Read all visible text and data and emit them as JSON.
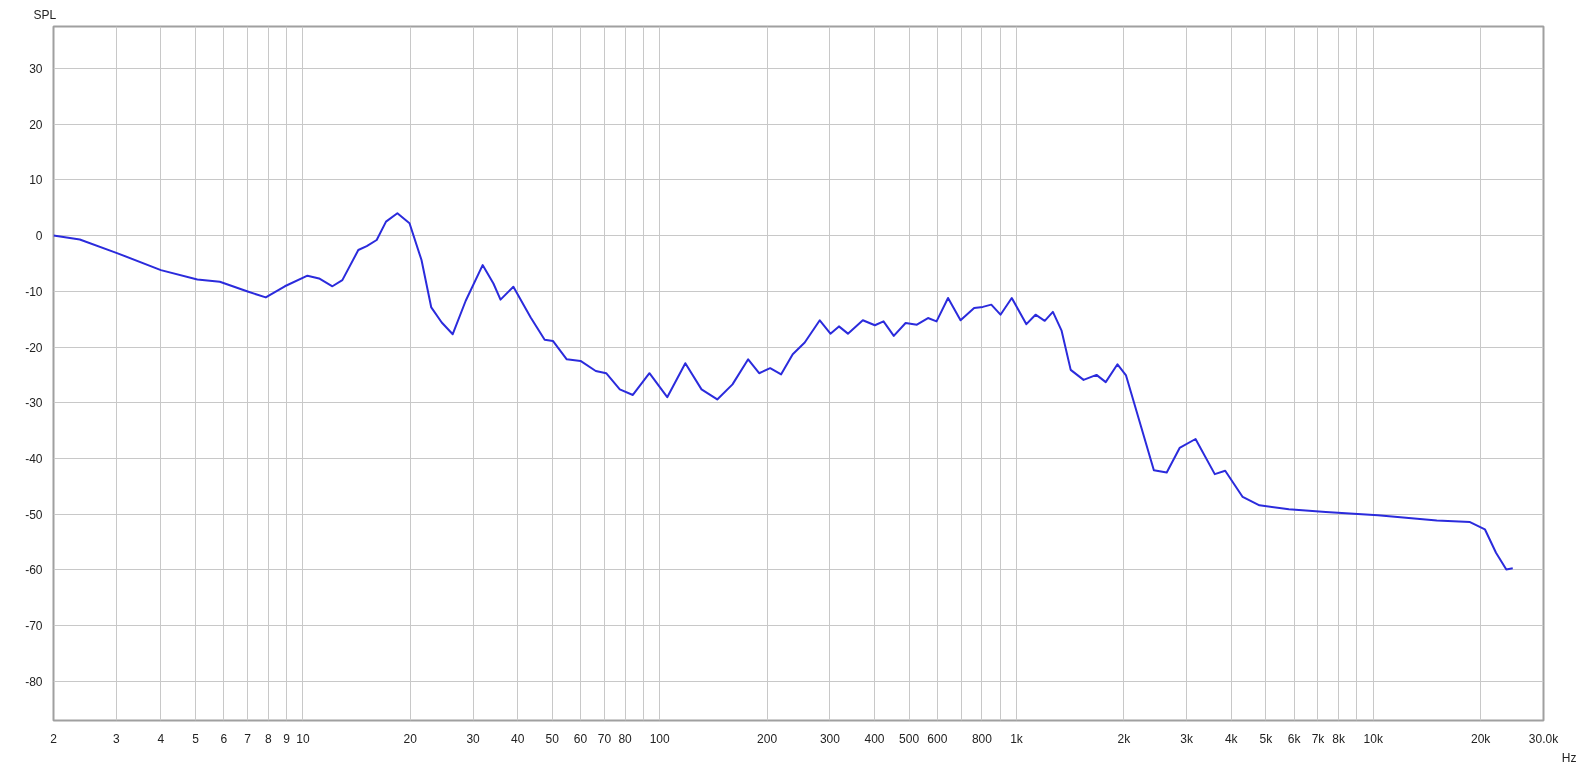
{
  "chart_data": {
    "type": "line",
    "ylabel": "SPL",
    "xlabel": "Hz",
    "log": "x",
    "grid": true,
    "marker": "none",
    "line_style": "solid",
    "xlim": [
      2,
      30000
    ],
    "ylim": [
      -87,
      37.5
    ],
    "xticks": [
      2,
      3,
      4,
      5,
      6,
      7,
      8,
      9,
      10,
      20,
      30,
      40,
      50,
      60,
      70,
      80,
      {
        "value": 90,
        "label": null
      },
      100,
      200,
      300,
      400,
      500,
      600,
      {
        "value": 700,
        "label": null
      },
      800,
      {
        "value": 900,
        "label": null
      },
      {
        "value": 1000,
        "label": "1k"
      },
      {
        "value": 2000,
        "label": "2k"
      },
      {
        "value": 3000,
        "label": "3k"
      },
      {
        "value": 4000,
        "label": "4k"
      },
      {
        "value": 5000,
        "label": "5k"
      },
      {
        "value": 6000,
        "label": "6k"
      },
      {
        "value": 7000,
        "label": "7k"
      },
      {
        "value": 8000,
        "label": "8k"
      },
      {
        "value": 9000,
        "label": null
      },
      {
        "value": 10000,
        "label": "10k"
      },
      {
        "value": 20000,
        "label": "20k"
      },
      {
        "value": 30000,
        "label": "30.0k"
      }
    ],
    "yticks": [
      -80,
      -70,
      -60,
      -50,
      -40,
      -30,
      -20,
      -10,
      0,
      10,
      20,
      30
    ],
    "series": [
      {
        "color": "#2b2bdc",
        "x": [
          2.0,
          2.37,
          3.0,
          4.0,
          5.06,
          5.85,
          6.97,
          7.87,
          8.9,
          10.3,
          11.1,
          12.1,
          12.9,
          14.3,
          15.1,
          16.1,
          17.1,
          18.4,
          19.9,
          21.5,
          22.9,
          24.5,
          26.3,
          28.6,
          31.9,
          34.2,
          35.8,
          38.9,
          43.5,
          47.6,
          50.2,
          54.9,
          60,
          66.2,
          70.8,
          77.3,
          84.1,
          93.6,
          105,
          118,
          131,
          145,
          160,
          177,
          190,
          204,
          219,
          236,
          255,
          281,
          301,
          318,
          337,
          371,
          401,
          424,
          453,
          489,
          526,
          565,
          597,
          643,
          697,
          761,
          805,
          850,
          902,
          970,
          1066,
          1131,
          1200,
          1265,
          1337,
          1419,
          1542,
          1676,
          1779,
          1919,
          2028,
          2233,
          2427,
          2637,
          2866,
          3176,
          3596,
          3846,
          4305,
          4797,
          5800,
          7360,
          10300,
          15070,
          18670,
          20550,
          22080,
          23600,
          24600
        ],
        "values": [
          0,
          -0.7,
          -3.1,
          -6.2,
          -7.9,
          -8.3,
          -10,
          -11.1,
          -9.1,
          -7.2,
          -7.7,
          -9.1,
          -8.0,
          -2.6,
          -1.9,
          -0.8,
          2.5,
          4.0,
          2.2,
          -4.4,
          -12.9,
          -15.6,
          -17.7,
          -11.7,
          -5.3,
          -8.6,
          -11.5,
          -9.2,
          -14.7,
          -18.7,
          -18.9,
          -22.2,
          -22.5,
          -24.3,
          -24.7,
          -27.6,
          -28.6,
          -24.7,
          -29,
          -22.9,
          -27.6,
          -29.4,
          -26.7,
          -22.2,
          -24.7,
          -23.8,
          -24.9,
          -21.3,
          -19.2,
          -15.2,
          -17.6,
          -16.3,
          -17.6,
          -15.2,
          -16.1,
          -15.4,
          -18,
          -15.7,
          -16,
          -14.8,
          -15.4,
          -11.2,
          -15.2,
          -13,
          -12.8,
          -12.4,
          -14.2,
          -11.2,
          -15.9,
          -14.2,
          -15.3,
          -13.7,
          -17,
          -24.1,
          -25.9,
          -25,
          -26.3,
          -23.1,
          -25.1,
          -34.2,
          -42.1,
          -42.5,
          -38.1,
          -36.5,
          -42.8,
          -42.2,
          -46.9,
          -48.4,
          -49.1,
          -49.6,
          -50.2,
          -51.1,
          -51.4,
          -52.7,
          -56.9,
          -59.9,
          -59.7
        ]
      }
    ]
  }
}
